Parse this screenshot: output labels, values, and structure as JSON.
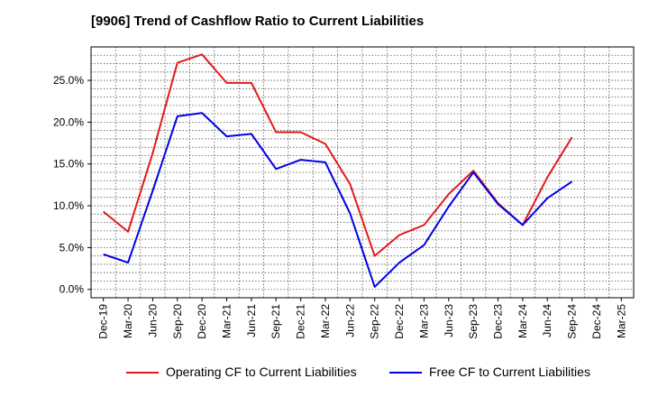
{
  "chart_data": {
    "type": "line",
    "title": "[9906]  Trend of Cashflow Ratio to Current Liabilities",
    "xlabel": "",
    "ylabel": "",
    "categories": [
      "Dec-19",
      "Mar-20",
      "Jun-20",
      "Sep-20",
      "Dec-20",
      "Mar-21",
      "Jun-21",
      "Sep-21",
      "Dec-21",
      "Mar-22",
      "Jun-22",
      "Sep-22",
      "Dec-22",
      "Mar-23",
      "Jun-23",
      "Sep-23",
      "Dec-23",
      "Mar-24",
      "Jun-24",
      "Sep-24",
      "Dec-24",
      "Mar-25"
    ],
    "ylim": [
      -1,
      29
    ],
    "yticks": [
      0,
      5,
      10,
      15,
      20,
      25
    ],
    "ytick_labels": [
      "0.0%",
      "5.0%",
      "10.0%",
      "15.0%",
      "20.0%",
      "25.0%"
    ],
    "grid": true,
    "legend_position": "bottom",
    "series": [
      {
        "name": "Operating CF to Current Liabilities",
        "color": "#e31a1c",
        "values": [
          9.3,
          6.9,
          16.3,
          27.1,
          28.1,
          24.7,
          24.7,
          18.8,
          18.8,
          17.4,
          12.6,
          4.0,
          6.5,
          7.7,
          11.4,
          14.2,
          10.3,
          7.7,
          13.4,
          18.2,
          null,
          null
        ]
      },
      {
        "name": "Free CF to Current Liabilities",
        "color": "#0000e6",
        "values": [
          4.2,
          3.2,
          11.8,
          20.7,
          21.1,
          18.3,
          18.6,
          14.4,
          15.5,
          15.2,
          9.1,
          0.3,
          3.2,
          5.3,
          9.9,
          14.0,
          10.2,
          7.7,
          10.9,
          12.9,
          null,
          null
        ]
      }
    ]
  }
}
